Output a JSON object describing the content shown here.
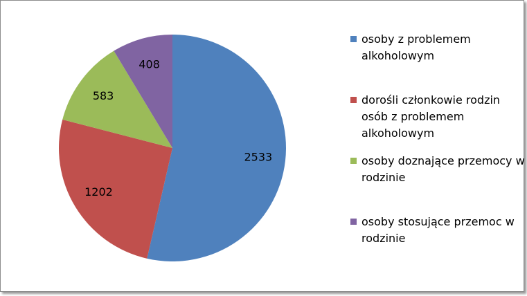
{
  "chart_data": {
    "type": "pie",
    "categories": [
      "osoby z problemem alkoholowym",
      "dorośli członkowie rodzin osób z problemem alkoholowym",
      "osoby doznające przemocy w rodzinie",
      "osoby stosujące przemoc w rodzinie"
    ],
    "values": [
      2533,
      1202,
      583,
      408
    ],
    "colors": [
      "#4f81bd",
      "#c0504d",
      "#9bbb59",
      "#8064a2"
    ],
    "legend": "right"
  }
}
